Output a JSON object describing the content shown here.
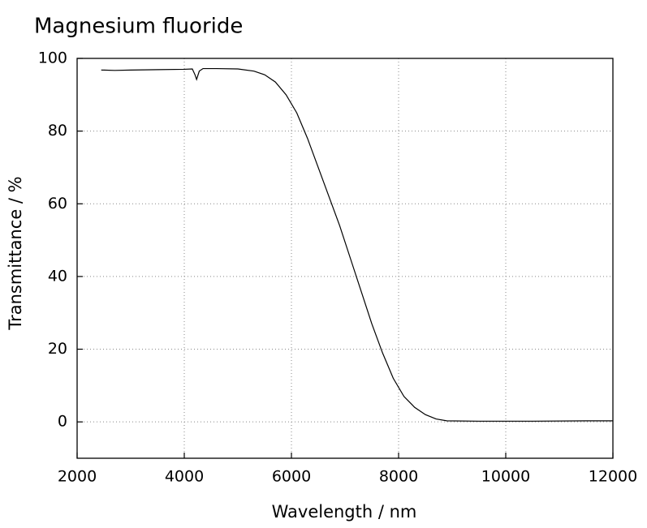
{
  "chart_data": {
    "type": "line",
    "title": "Magnesium fluoride",
    "x_label": "Wavelength / nm",
    "y_label": "Transmittance / %",
    "xlim": [
      2000,
      12000
    ],
    "xticks": [
      2000,
      4000,
      6000,
      8000,
      10000,
      12000
    ],
    "ylim": [
      -10,
      100
    ],
    "yticks": [
      0,
      20,
      40,
      60,
      80,
      100
    ],
    "grid": true,
    "series": [
      {
        "color": "#000000",
        "x": [
          2450,
          2700,
          3000,
          3500,
          4000,
          4150,
          4200,
          4230,
          4280,
          4350,
          4600,
          5000,
          5300,
          5500,
          5700,
          5900,
          6100,
          6300,
          6500,
          6700,
          6900,
          7100,
          7300,
          7500,
          7700,
          7900,
          8100,
          8300,
          8500,
          8700,
          8900,
          9500,
          10500,
          11500,
          12000
        ],
        "values": [
          96.8,
          96.7,
          96.8,
          96.9,
          97.0,
          97.1,
          95.5,
          94.2,
          96.5,
          97.2,
          97.2,
          97.1,
          96.5,
          95.5,
          93.5,
          90,
          85,
          78,
          70,
          62,
          54,
          45,
          36,
          27,
          19,
          12,
          7,
          4,
          2,
          0.8,
          0.3,
          0.2,
          0.2,
          0.3,
          0.3
        ]
      }
    ]
  }
}
